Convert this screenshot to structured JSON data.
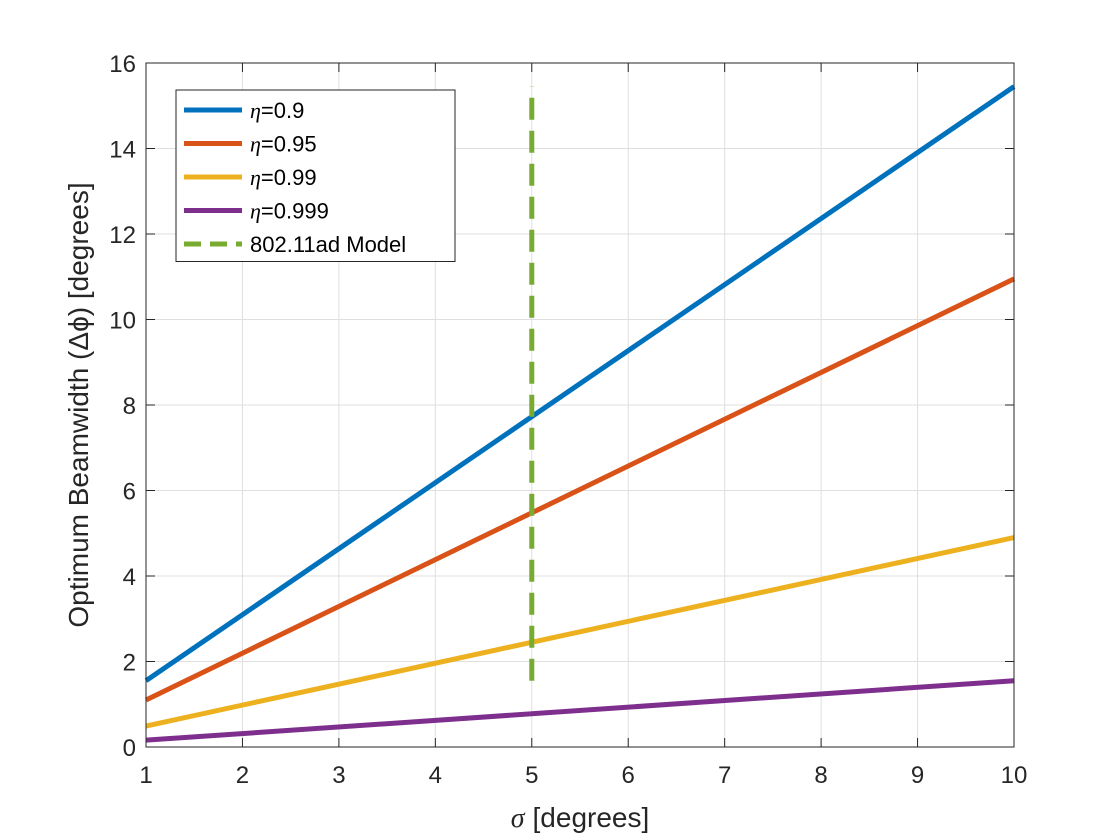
{
  "chart_data": {
    "type": "line",
    "xlabel": "[degrees]",
    "xlabel_symbol": "σ",
    "ylabel": "Optimum Beamwidth (Δϕ) [degrees]",
    "xlim": [
      1,
      10
    ],
    "ylim": [
      0,
      16
    ],
    "x_ticks": [
      1,
      2,
      3,
      4,
      5,
      6,
      7,
      8,
      9,
      10
    ],
    "y_ticks": [
      0,
      2,
      4,
      6,
      8,
      10,
      12,
      14,
      16
    ],
    "grid": true,
    "legend_position": "top-left",
    "series": [
      {
        "name": "η=0.9",
        "name_symbol": "η",
        "name_rest": "=0.9",
        "color": "#0072BD",
        "style": "solid",
        "x": [
          1,
          10
        ],
        "y": [
          1.55,
          15.45
        ]
      },
      {
        "name": "η=0.95",
        "name_symbol": "η",
        "name_rest": "=0.95",
        "color": "#D95319",
        "style": "solid",
        "x": [
          1,
          10
        ],
        "y": [
          1.1,
          10.95
        ]
      },
      {
        "name": "η=0.99",
        "name_symbol": "η",
        "name_rest": "=0.99",
        "color": "#EDB120",
        "style": "solid",
        "x": [
          1,
          10
        ],
        "y": [
          0.49,
          4.9
        ]
      },
      {
        "name": "η=0.999",
        "name_symbol": "η",
        "name_rest": "=0.999",
        "color": "#7E2F8E",
        "style": "solid",
        "x": [
          1,
          10
        ],
        "y": [
          0.16,
          1.55
        ]
      },
      {
        "name": "802.11ad Model",
        "name_symbol": "",
        "name_rest": "802.11ad Model",
        "color": "#77AC30",
        "style": "dashed",
        "x": [
          5,
          5
        ],
        "y": [
          1.55,
          15.45
        ]
      }
    ]
  }
}
